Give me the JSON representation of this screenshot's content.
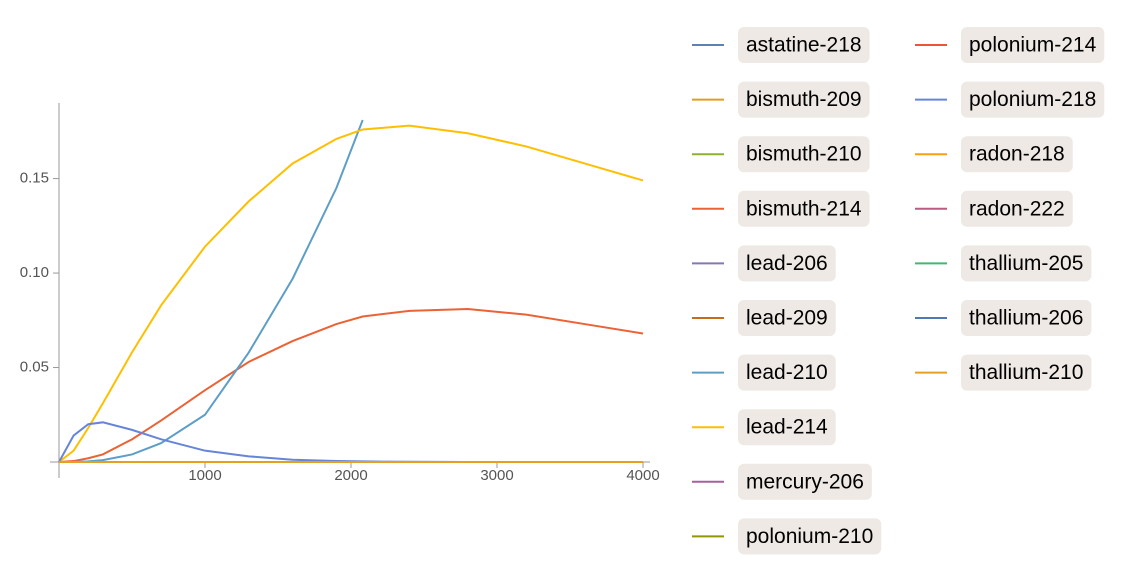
{
  "chart_data": {
    "type": "line",
    "x": [
      0,
      100,
      200,
      300,
      500,
      700,
      1000,
      1300,
      1600,
      1900,
      2080,
      2400,
      2800,
      3200,
      3600,
      4000
    ],
    "xlim": [
      0,
      4000
    ],
    "xticks": [
      1000,
      2000,
      3000,
      4000
    ],
    "ylim": [
      0,
      0.19
    ],
    "yticks": [
      0.05,
      {
        "value": 0.1,
        "label": "0.10"
      },
      0.15
    ],
    "series": [
      {
        "name": "astatine-218",
        "color": "#5E81B5",
        "values": [
          0,
          0,
          0,
          0,
          0,
          0,
          0,
          0,
          0,
          0,
          0,
          0,
          0,
          0,
          0,
          0
        ]
      },
      {
        "name": "bismuth-209",
        "color": "#E19C24",
        "values": [
          0,
          0,
          0,
          0,
          0,
          0,
          0,
          0,
          0,
          0,
          0,
          0,
          0,
          0,
          0,
          0
        ]
      },
      {
        "name": "bismuth-210",
        "color": "#8FB032",
        "values": [
          0,
          0,
          0,
          0,
          0,
          0,
          0,
          0,
          0,
          0,
          0,
          0,
          0,
          0,
          0,
          0
        ]
      },
      {
        "name": "bismuth-214",
        "color": "#EB6235",
        "values": [
          0,
          0.0005,
          0.002,
          0.004,
          0.012,
          0.022,
          0.038,
          0.053,
          0.064,
          0.073,
          0.077,
          0.08,
          0.081,
          0.078,
          0.073,
          0.068
        ]
      },
      {
        "name": "lead-206",
        "color": "#8778B3",
        "values": [
          0,
          0,
          0,
          0,
          0,
          0,
          0,
          0,
          0,
          0,
          0,
          0,
          0,
          0,
          0,
          0
        ]
      },
      {
        "name": "lead-209",
        "color": "#C56E1A",
        "values": [
          0,
          0,
          0,
          0,
          0,
          0,
          0,
          0,
          0,
          0,
          0,
          0,
          0,
          0,
          0,
          0
        ]
      },
      {
        "name": "lead-210",
        "color": "#5D9EC7",
        "values": [
          0,
          0,
          0.0003,
          0.001,
          0.004,
          0.01,
          0.025,
          0.058,
          0.097,
          0.145,
          0.181,
          null,
          null,
          null,
          null,
          null
        ]
      },
      {
        "name": "lead-214",
        "color": "#FFBF00",
        "values": [
          0,
          0.006,
          0.018,
          0.031,
          0.058,
          0.083,
          0.114,
          0.138,
          0.158,
          0.171,
          0.176,
          0.178,
          0.174,
          0.167,
          0.158,
          0.149
        ]
      },
      {
        "name": "mercury-206",
        "color": "#A5609D",
        "values": [
          0,
          0,
          0,
          0,
          0,
          0,
          0,
          0,
          0,
          0,
          0,
          0,
          0,
          0,
          0,
          0
        ]
      },
      {
        "name": "polonium-210",
        "color": "#929600",
        "values": [
          0,
          0,
          0,
          0,
          0,
          0,
          0,
          0,
          0,
          0,
          0,
          0,
          0,
          0,
          0,
          0
        ]
      },
      {
        "name": "polonium-214",
        "color": "#E95536",
        "values": [
          0,
          0,
          0,
          0,
          0,
          0,
          0,
          0,
          0,
          0,
          0,
          0,
          0,
          0,
          0,
          0
        ]
      },
      {
        "name": "polonium-218",
        "color": "#6685D9",
        "values": [
          0,
          0.014,
          0.02,
          0.021,
          0.017,
          0.012,
          0.006,
          0.003,
          0.0012,
          0.0005,
          0.0003,
          0.0001,
          0,
          0,
          0,
          0
        ]
      },
      {
        "name": "radon-218",
        "color": "#F89F13",
        "values": [
          0,
          0,
          0,
          0,
          0,
          0,
          0,
          0,
          0,
          0,
          0,
          0,
          0,
          0,
          0,
          0
        ]
      },
      {
        "name": "radon-222",
        "color": "#BC5B80",
        "values": [
          0,
          0,
          0,
          0,
          0,
          0,
          0,
          0,
          0,
          0,
          0,
          0,
          0,
          0,
          0,
          0
        ]
      },
      {
        "name": "thallium-205",
        "color": "#47B66D",
        "values": [
          0,
          0,
          0,
          0,
          0,
          0,
          0,
          0,
          0,
          0,
          0,
          0,
          0,
          0,
          0,
          0
        ]
      },
      {
        "name": "thallium-206",
        "color": "#4E79B5",
        "values": [
          0,
          0,
          0,
          0,
          0,
          0,
          0,
          0,
          0,
          0,
          0,
          0,
          0,
          0,
          0,
          0
        ]
      },
      {
        "name": "thallium-210",
        "color": "#E6A021",
        "values": [
          0,
          0,
          0,
          0,
          0,
          0,
          0,
          0,
          0,
          0,
          0,
          0,
          0,
          0,
          0,
          0
        ]
      }
    ]
  }
}
